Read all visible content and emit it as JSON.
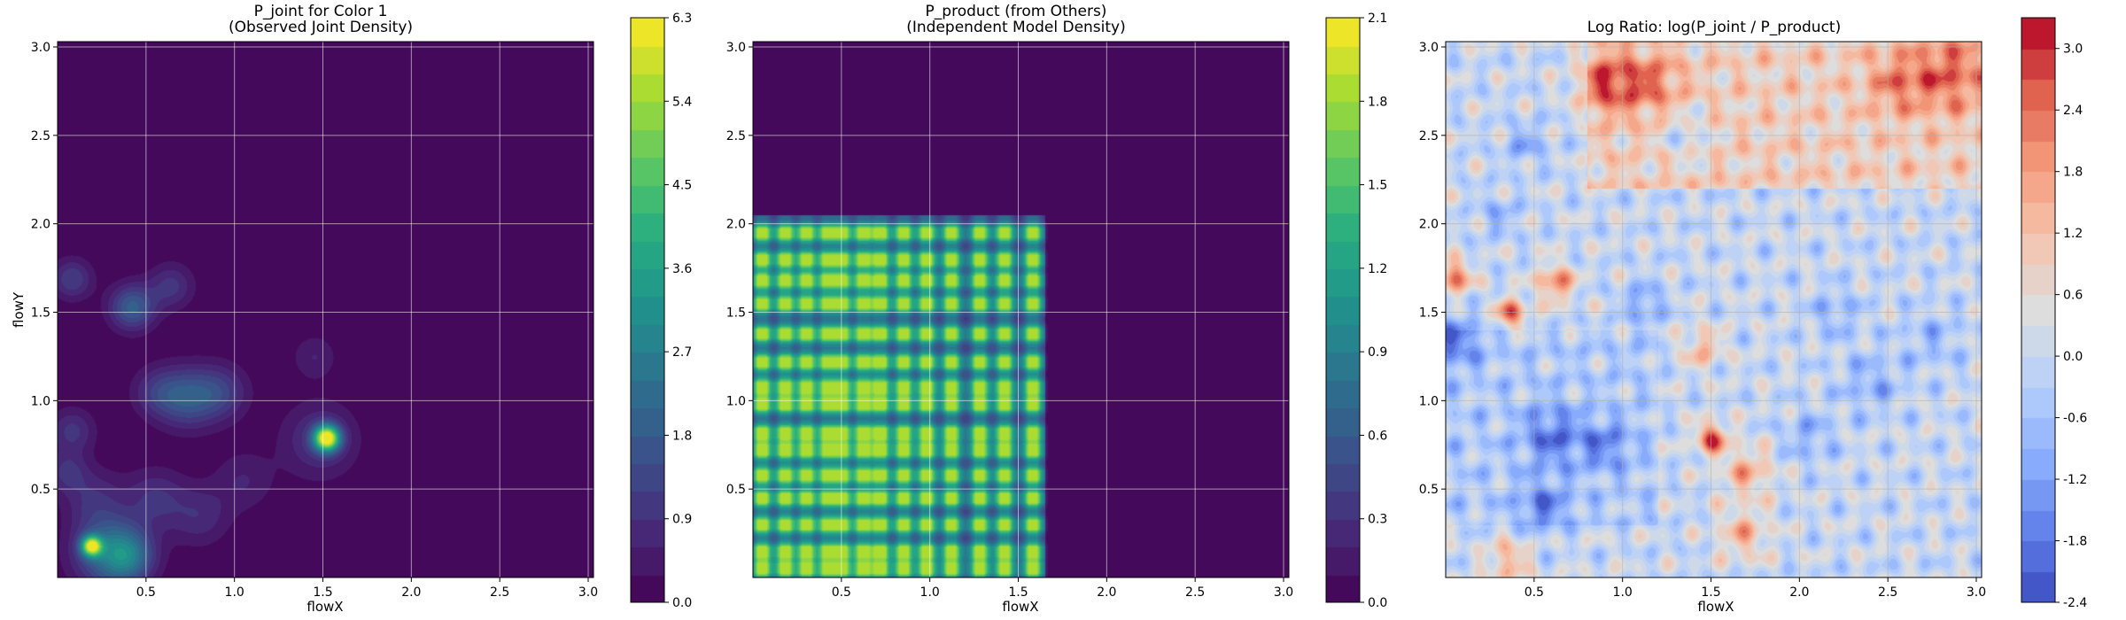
{
  "chart_data": [
    {
      "type": "heatmap",
      "title_line1": "P_joint for Color 1",
      "title_line2": "(Observed Joint Density)",
      "xlabel": "flowX",
      "ylabel": "flowY",
      "xlim": [
        0.0,
        3.03
      ],
      "ylim": [
        0.0,
        3.03
      ],
      "x_ticks": [
        "0.5",
        "1.0",
        "1.5",
        "2.0",
        "2.5",
        "3.0"
      ],
      "y_ticks": [
        "0.5",
        "1.0",
        "1.5",
        "2.0",
        "2.5",
        "3.0"
      ],
      "grid": true,
      "colormap": "viridis",
      "colorbar": {
        "min": 0.0,
        "max": 6.3,
        "levels": 21,
        "ticks": [
          "0.0",
          "0.9",
          "1.8",
          "2.7",
          "3.6",
          "4.5",
          "5.4",
          "6.3"
        ]
      },
      "background_value": 0.0,
      "hotspots": [
        {
          "x": 1.52,
          "y": 0.79,
          "value": 6.3,
          "spread": 0.05
        },
        {
          "x": 0.19,
          "y": 0.18,
          "value": 5.2,
          "spread": 0.04
        },
        {
          "x": 0.08,
          "y": 1.69,
          "value": 1.2,
          "spread": 0.08
        },
        {
          "x": 0.42,
          "y": 1.53,
          "value": 1.9,
          "spread": 0.09
        },
        {
          "x": 0.64,
          "y": 1.65,
          "value": 1.0,
          "spread": 0.09
        },
        {
          "x": 0.73,
          "y": 1.02,
          "value": 1.6,
          "spread": 0.12
        },
        {
          "x": 0.92,
          "y": 1.05,
          "value": 1.1,
          "spread": 0.11
        },
        {
          "x": 0.56,
          "y": 1.05,
          "value": 0.9,
          "spread": 0.1
        },
        {
          "x": 0.08,
          "y": 0.83,
          "value": 1.0,
          "spread": 0.09
        },
        {
          "x": 0.05,
          "y": 0.6,
          "value": 0.9,
          "spread": 0.08
        },
        {
          "x": 0.29,
          "y": 0.15,
          "value": 2.2,
          "spread": 0.14
        },
        {
          "x": 0.4,
          "y": 0.12,
          "value": 1.6,
          "spread": 0.1
        },
        {
          "x": 0.55,
          "y": 0.45,
          "value": 0.9,
          "spread": 0.12
        },
        {
          "x": 0.8,
          "y": 0.35,
          "value": 0.8,
          "spread": 0.12
        },
        {
          "x": 1.48,
          "y": 0.78,
          "value": 1.0,
          "spread": 0.15
        },
        {
          "x": 1.05,
          "y": 0.55,
          "value": 0.6,
          "spread": 0.12
        },
        {
          "x": 1.45,
          "y": 1.25,
          "value": 0.6,
          "spread": 0.09
        },
        {
          "x": 0.2,
          "y": 0.45,
          "value": 0.8,
          "spread": 0.12
        }
      ]
    },
    {
      "type": "heatmap",
      "title_line1": "P_product (from Others)",
      "title_line2": "(Independent Model Density)",
      "xlabel": "flowX",
      "ylabel": "",
      "xlim": [
        0.0,
        3.03
      ],
      "ylim": [
        0.0,
        3.03
      ],
      "x_ticks": [
        "0.5",
        "1.0",
        "1.5",
        "2.0",
        "2.5",
        "3.0"
      ],
      "y_ticks": [
        "0.5",
        "1.0",
        "1.5",
        "2.0",
        "2.5",
        "3.0"
      ],
      "grid": true,
      "colormap": "viridis",
      "colorbar": {
        "min": 0.0,
        "max": 2.1,
        "levels": 21,
        "ticks": [
          "0.0",
          "0.3",
          "0.6",
          "0.9",
          "1.2",
          "1.5",
          "1.8",
          "2.1"
        ]
      },
      "background_value": 0.0,
      "x_marginal_peaks": [
        0.05,
        0.18,
        0.3,
        0.42,
        0.5,
        0.62,
        0.72,
        0.85,
        0.98,
        1.12,
        1.28,
        1.42,
        1.58
      ],
      "y_marginal_peaks": [
        0.05,
        0.15,
        0.3,
        0.45,
        0.58,
        0.72,
        0.82,
        0.98,
        1.08,
        1.22,
        1.38,
        1.55,
        1.68,
        1.8,
        1.95
      ],
      "peak_value": 2.1
    },
    {
      "type": "heatmap",
      "title_line1": "Log Ratio: log(P_joint / P_product)",
      "title_line2": "",
      "xlabel": "flowX",
      "ylabel": "",
      "xlim": [
        0.0,
        3.03
      ],
      "ylim": [
        0.0,
        3.03
      ],
      "x_ticks": [
        "0.5",
        "1.0",
        "1.5",
        "2.0",
        "2.5",
        "3.0"
      ],
      "y_ticks": [
        "0.5",
        "1.0",
        "1.5",
        "2.0",
        "2.5",
        "3.0"
      ],
      "grid": true,
      "colormap": "coolwarm",
      "colorbar": {
        "min": -2.4,
        "max": 3.3,
        "levels": 19,
        "ticks": [
          "-2.4",
          "-1.8",
          "-1.2",
          "-0.6",
          "0.0",
          "0.6",
          "1.2",
          "1.8",
          "2.4",
          "3.0"
        ]
      },
      "background_value": 0.0,
      "hotspots": [
        {
          "x": 0.05,
          "y": 1.7,
          "value": 2.6,
          "spread": 0.06
        },
        {
          "x": 0.37,
          "y": 1.5,
          "value": 2.4,
          "spread": 0.06
        },
        {
          "x": 0.62,
          "y": 1.67,
          "value": 2.2,
          "spread": 0.07
        },
        {
          "x": 1.5,
          "y": 0.79,
          "value": 2.8,
          "spread": 0.06
        },
        {
          "x": 0.9,
          "y": 2.8,
          "value": 1.8,
          "spread": 0.12
        },
        {
          "x": 1.15,
          "y": 2.8,
          "value": 1.4,
          "spread": 0.12
        },
        {
          "x": 2.85,
          "y": 2.85,
          "value": 1.6,
          "spread": 0.15
        },
        {
          "x": 2.55,
          "y": 2.8,
          "value": 1.2,
          "spread": 0.12
        },
        {
          "x": 0.35,
          "y": 0.1,
          "value": 1.5,
          "spread": 0.08
        },
        {
          "x": 1.7,
          "y": 0.6,
          "value": 1.5,
          "spread": 0.1
        },
        {
          "x": 1.68,
          "y": 0.25,
          "value": 1.4,
          "spread": 0.1
        },
        {
          "x": 1.45,
          "y": 1.3,
          "value": 1.3,
          "spread": 0.08
        },
        {
          "x": 0.05,
          "y": 1.35,
          "value": -1.6,
          "spread": 0.1
        },
        {
          "x": 0.6,
          "y": 0.8,
          "value": -1.5,
          "spread": 0.12
        },
        {
          "x": 0.9,
          "y": 0.75,
          "value": -1.3,
          "spread": 0.1
        },
        {
          "x": 0.55,
          "y": 0.4,
          "value": -1.4,
          "spread": 0.1
        },
        {
          "x": 1.12,
          "y": 1.55,
          "value": -1.2,
          "spread": 0.08
        },
        {
          "x": 0.45,
          "y": 2.45,
          "value": -1.0,
          "spread": 0.08
        },
        {
          "x": 2.4,
          "y": 1.1,
          "value": -0.9,
          "spread": 0.12
        },
        {
          "x": 2.2,
          "y": 1.5,
          "value": -0.8,
          "spread": 0.1
        },
        {
          "x": 2.75,
          "y": 1.35,
          "value": -0.7,
          "spread": 0.12
        },
        {
          "x": 0.3,
          "y": 2.05,
          "value": -0.8,
          "spread": 0.08
        },
        {
          "x": 1.35,
          "y": 2.5,
          "value": -0.9,
          "spread": 0.1
        },
        {
          "x": 2.05,
          "y": 0.8,
          "value": -0.9,
          "spread": 0.1
        }
      ]
    }
  ]
}
